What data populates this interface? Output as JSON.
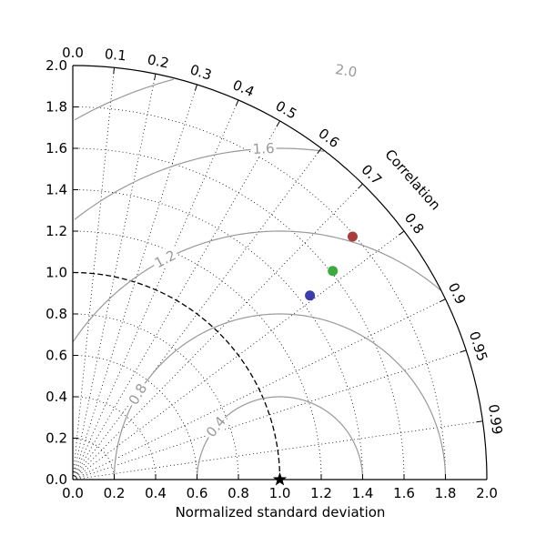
{
  "chart_data": {
    "type": "taylor-diagram",
    "xlabel": "Normalized standard deviation",
    "arc_label": "Correlation",
    "xlim": [
      0,
      2.0
    ],
    "ylim": [
      0,
      2.0
    ],
    "x_ticks": [
      "0.0",
      "0.2",
      "0.4",
      "0.6",
      "0.8",
      "1.0",
      "1.2",
      "1.4",
      "1.6",
      "1.8",
      "2.0"
    ],
    "y_ticks": [
      "0.0",
      "0.2",
      "0.4",
      "0.6",
      "0.8",
      "1.0",
      "1.2",
      "1.4",
      "1.6",
      "1.8",
      "2.0"
    ],
    "correlation_ticks": [
      {
        "value": 0.0,
        "label": "0.0"
      },
      {
        "value": 0.1,
        "label": "0.1"
      },
      {
        "value": 0.2,
        "label": "0.2"
      },
      {
        "value": 0.3,
        "label": "0.3"
      },
      {
        "value": 0.4,
        "label": "0.4"
      },
      {
        "value": 0.5,
        "label": "0.5"
      },
      {
        "value": 0.6,
        "label": "0.6"
      },
      {
        "value": 0.7,
        "label": "0.7"
      },
      {
        "value": 0.8,
        "label": "0.8"
      },
      {
        "value": 0.9,
        "label": "0.9"
      },
      {
        "value": 0.95,
        "label": "0.95"
      },
      {
        "value": 0.99,
        "label": "0.99"
      }
    ],
    "rms_contours": [
      {
        "value": 0.4,
        "label": "0.4"
      },
      {
        "value": 0.8,
        "label": "0.8"
      },
      {
        "value": 1.2,
        "label": "1.2"
      },
      {
        "value": 1.6,
        "label": "1.6"
      },
      {
        "value": 2.0,
        "label": "2.0"
      }
    ],
    "reference": {
      "std": 1.0,
      "marker": "star"
    },
    "points": [
      {
        "std": 1.45,
        "correlation": 0.79,
        "color": "#3c3caa"
      },
      {
        "std": 1.61,
        "correlation": 0.78,
        "color": "#3caa3c"
      },
      {
        "std": 1.79,
        "correlation": 0.755,
        "color": "#aa3c3c"
      }
    ],
    "grid": true,
    "colors": {
      "contour": "#999999",
      "reference_arc": "#000000"
    }
  }
}
